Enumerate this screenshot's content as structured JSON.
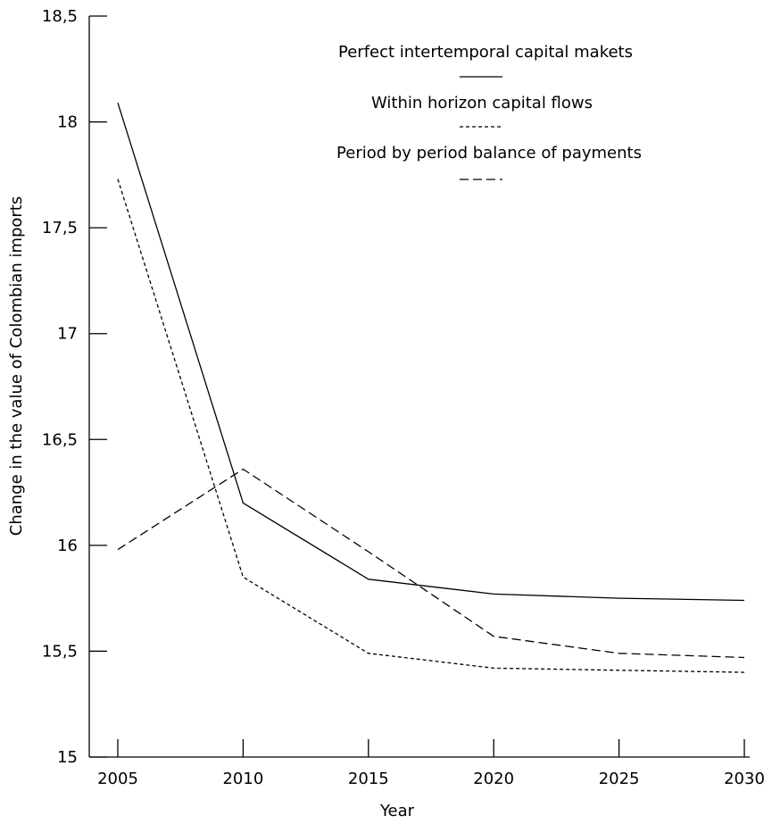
{
  "chart_data": {
    "type": "line",
    "title": "",
    "xlabel": "Year",
    "ylabel": "Change in the value of Colombian imports",
    "x": [
      2005,
      2010,
      2015,
      2020,
      2025,
      2030
    ],
    "x_tick_labels": [
      "2005",
      "2010",
      "2015",
      "2020",
      "2025",
      "2030"
    ],
    "y_tick_labels": [
      "15",
      "15,5",
      "16",
      "16,5",
      "17",
      "17,5",
      "18",
      "18,5"
    ],
    "ylim": [
      15,
      18.5
    ],
    "grid": false,
    "legend_position": "top-center",
    "series": [
      {
        "name": "Perfect intertemporal capital makets",
        "line_style": "solid",
        "values": [
          18.09,
          16.2,
          15.84,
          15.77,
          15.75,
          15.74
        ]
      },
      {
        "name": "Within horizon capital flows",
        "line_style": "dotted",
        "values": [
          17.73,
          15.85,
          15.49,
          15.42,
          15.41,
          15.4
        ]
      },
      {
        "name": "Period by period balance of payments",
        "line_style": "dashed",
        "values": [
          15.98,
          16.36,
          15.97,
          15.57,
          15.49,
          15.47
        ]
      }
    ]
  }
}
